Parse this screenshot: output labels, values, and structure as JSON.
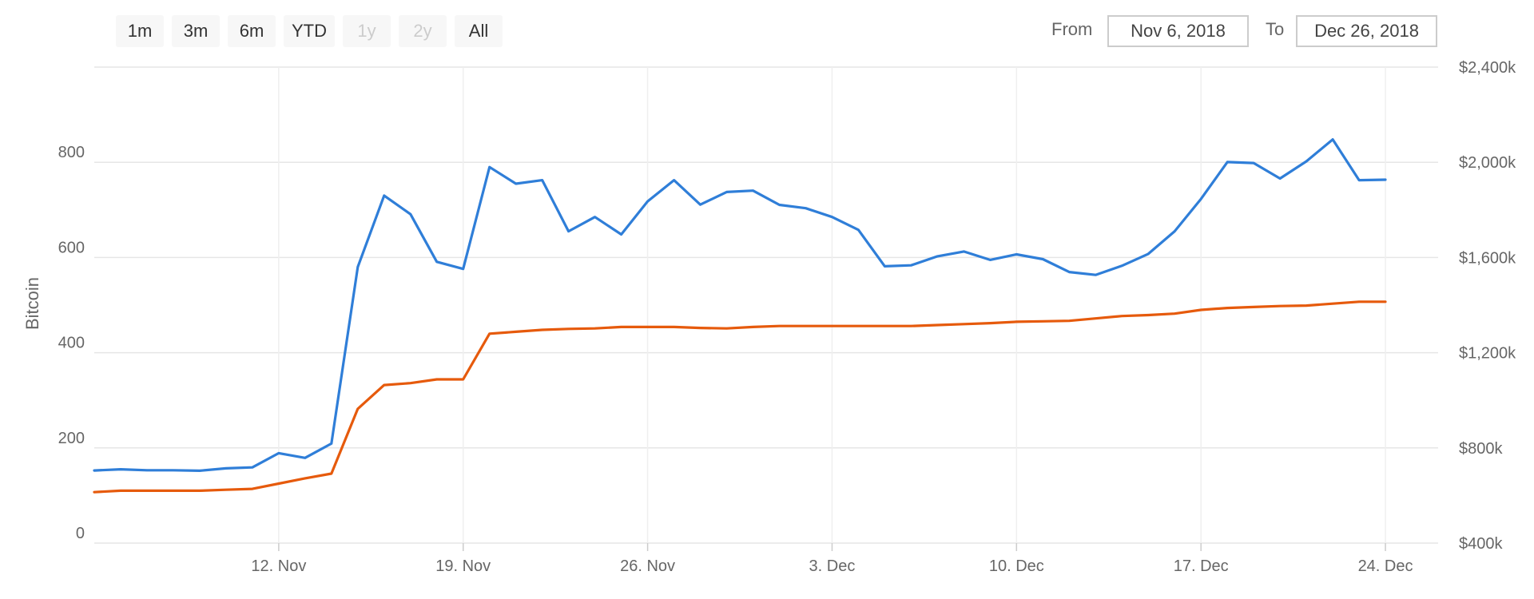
{
  "range_selector": {
    "buttons": [
      {
        "label": "1m",
        "enabled": true
      },
      {
        "label": "3m",
        "enabled": true
      },
      {
        "label": "6m",
        "enabled": true
      },
      {
        "label": "YTD",
        "enabled": true
      },
      {
        "label": "1y",
        "enabled": false
      },
      {
        "label": "2y",
        "enabled": false
      },
      {
        "label": "All",
        "enabled": true
      }
    ],
    "from_label": "From",
    "from_value": "Nov 6, 2018",
    "to_label": "To",
    "to_value": "Dec 26, 2018"
  },
  "chart_data": {
    "type": "line",
    "title": "",
    "x_range": [
      "2018-11-05",
      "2018-12-26"
    ],
    "x_ticks": [
      {
        "date": "2018-11-12",
        "label": "12. Nov"
      },
      {
        "date": "2018-11-19",
        "label": "19. Nov"
      },
      {
        "date": "2018-11-26",
        "label": "26. Nov"
      },
      {
        "date": "2018-12-03",
        "label": "3. Dec"
      },
      {
        "date": "2018-12-10",
        "label": "10. Dec"
      },
      {
        "date": "2018-12-17",
        "label": "17. Dec"
      },
      {
        "date": "2018-12-24",
        "label": "24. Dec"
      }
    ],
    "y_left": {
      "label": "Bitcoin",
      "min": 0,
      "max": 1000,
      "ticks": [
        0,
        200,
        400,
        600,
        800
      ],
      "tick_labels": [
        "0",
        "200",
        "400",
        "600",
        "800"
      ]
    },
    "y_right": {
      "min": 400000,
      "max": 2400000,
      "ticks": [
        400000,
        800000,
        1200000,
        1600000,
        2000000,
        2400000
      ],
      "tick_labels": [
        "$400k",
        "$800k",
        "$1,200k",
        "$1,600k",
        "$2,000k",
        "$2,400k"
      ]
    },
    "grid": true,
    "series": [
      {
        "axis": "right",
        "color": "#2f7ed8",
        "points": [
          [
            "2018-11-05",
            705000
          ],
          [
            "2018-11-06",
            710000
          ],
          [
            "2018-11-07",
            706000
          ],
          [
            "2018-11-08",
            706000
          ],
          [
            "2018-11-09",
            704000
          ],
          [
            "2018-11-10",
            714000
          ],
          [
            "2018-11-11",
            718000
          ],
          [
            "2018-11-12",
            778000
          ],
          [
            "2018-11-13",
            758000
          ],
          [
            "2018-11-14",
            818000
          ],
          [
            "2018-11-15",
            1560000
          ],
          [
            "2018-11-16",
            1860000
          ],
          [
            "2018-11-17",
            1782000
          ],
          [
            "2018-11-18",
            1582000
          ],
          [
            "2018-11-19",
            1552000
          ],
          [
            "2018-11-20",
            1980000
          ],
          [
            "2018-11-21",
            1910000
          ],
          [
            "2018-11-22",
            1925000
          ],
          [
            "2018-11-23",
            1710000
          ],
          [
            "2018-11-24",
            1770000
          ],
          [
            "2018-11-25",
            1697000
          ],
          [
            "2018-11-26",
            1836000
          ],
          [
            "2018-11-27",
            1925000
          ],
          [
            "2018-11-28",
            1822000
          ],
          [
            "2018-11-29",
            1875000
          ],
          [
            "2018-11-30",
            1881000
          ],
          [
            "2018-12-01",
            1821000
          ],
          [
            "2018-12-02",
            1807000
          ],
          [
            "2018-12-03",
            1770000
          ],
          [
            "2018-12-04",
            1716000
          ],
          [
            "2018-12-05",
            1563000
          ],
          [
            "2018-12-06",
            1567000
          ],
          [
            "2018-12-07",
            1605000
          ],
          [
            "2018-12-08",
            1625000
          ],
          [
            "2018-12-09",
            1590000
          ],
          [
            "2018-12-10",
            1613000
          ],
          [
            "2018-12-11",
            1593000
          ],
          [
            "2018-12-12",
            1539000
          ],
          [
            "2018-12-13",
            1527000
          ],
          [
            "2018-12-14",
            1565000
          ],
          [
            "2018-12-15",
            1615000
          ],
          [
            "2018-12-16",
            1710000
          ],
          [
            "2018-12-17",
            1846000
          ],
          [
            "2018-12-18",
            2001000
          ],
          [
            "2018-12-19",
            1997000
          ],
          [
            "2018-12-20",
            1932000
          ],
          [
            "2018-12-21",
            2004000
          ],
          [
            "2018-12-22",
            2096000
          ],
          [
            "2018-12-23",
            1925000
          ],
          [
            "2018-12-24",
            1927000
          ]
        ]
      },
      {
        "axis": "left",
        "color": "#e65a0c",
        "points": [
          [
            "2018-11-05",
            107
          ],
          [
            "2018-11-06",
            110
          ],
          [
            "2018-11-07",
            110
          ],
          [
            "2018-11-08",
            110
          ],
          [
            "2018-11-09",
            110
          ],
          [
            "2018-11-10",
            112
          ],
          [
            "2018-11-11",
            114
          ],
          [
            "2018-11-12",
            125
          ],
          [
            "2018-11-13",
            136
          ],
          [
            "2018-11-14",
            146
          ],
          [
            "2018-11-15",
            282
          ],
          [
            "2018-11-16",
            332
          ],
          [
            "2018-11-17",
            336
          ],
          [
            "2018-11-18",
            344
          ],
          [
            "2018-11-19",
            344
          ],
          [
            "2018-11-20",
            440
          ],
          [
            "2018-11-21",
            444
          ],
          [
            "2018-11-22",
            448
          ],
          [
            "2018-11-23",
            450
          ],
          [
            "2018-11-24",
            451
          ],
          [
            "2018-11-25",
            454
          ],
          [
            "2018-11-26",
            454
          ],
          [
            "2018-11-27",
            454
          ],
          [
            "2018-11-28",
            452
          ],
          [
            "2018-11-29",
            451
          ],
          [
            "2018-11-30",
            454
          ],
          [
            "2018-12-01",
            456
          ],
          [
            "2018-12-02",
            456
          ],
          [
            "2018-12-03",
            456
          ],
          [
            "2018-12-04",
            456
          ],
          [
            "2018-12-05",
            456
          ],
          [
            "2018-12-06",
            456
          ],
          [
            "2018-12-07",
            458
          ],
          [
            "2018-12-08",
            460
          ],
          [
            "2018-12-09",
            462
          ],
          [
            "2018-12-10",
            465
          ],
          [
            "2018-12-11",
            466
          ],
          [
            "2018-12-12",
            467
          ],
          [
            "2018-12-13",
            472
          ],
          [
            "2018-12-14",
            477
          ],
          [
            "2018-12-15",
            479
          ],
          [
            "2018-12-16",
            482
          ],
          [
            "2018-12-17",
            490
          ],
          [
            "2018-12-18",
            494
          ],
          [
            "2018-12-19",
            496
          ],
          [
            "2018-12-20",
            498
          ],
          [
            "2018-12-21",
            499
          ],
          [
            "2018-12-22",
            503
          ],
          [
            "2018-12-23",
            507
          ],
          [
            "2018-12-24",
            507
          ]
        ]
      }
    ]
  }
}
